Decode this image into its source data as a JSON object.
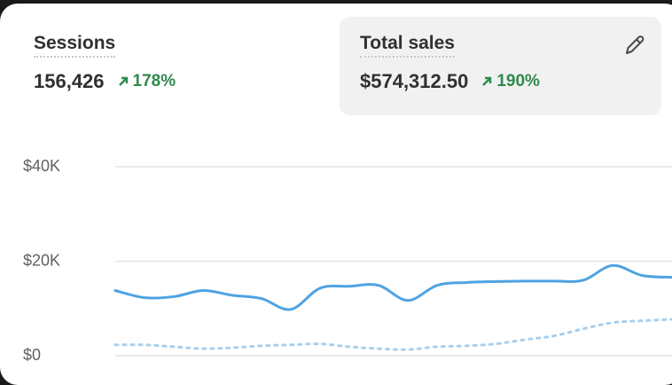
{
  "metrics": [
    {
      "label": "Sessions",
      "value": "156,426",
      "change": "178%"
    },
    {
      "label": "Total sales",
      "value": "$574,312.50",
      "change": "190%"
    }
  ],
  "chart_data": {
    "type": "line",
    "ylim": [
      0,
      40000
    ],
    "yticks": [
      {
        "value": 0,
        "label": "$0"
      },
      {
        "value": 20000,
        "label": "$20K"
      },
      {
        "value": 40000,
        "label": "$40K"
      }
    ],
    "grid": true,
    "series": [
      {
        "color": "#4ea3e2",
        "dashed": false,
        "values": [
          13800,
          12300,
          12500,
          13800,
          12800,
          12100,
          9800,
          14300,
          14700,
          14900,
          11700,
          14900,
          15500,
          15700,
          15800,
          15800,
          16000,
          19100,
          17000,
          16600
        ]
      },
      {
        "color": "#a7cfee",
        "dashed": true,
        "values": [
          2300,
          2300,
          1900,
          1500,
          1700,
          2100,
          2300,
          2500,
          1900,
          1500,
          1300,
          1900,
          2100,
          2500,
          3400,
          4200,
          5700,
          7000,
          7400,
          7700
        ]
      }
    ]
  }
}
